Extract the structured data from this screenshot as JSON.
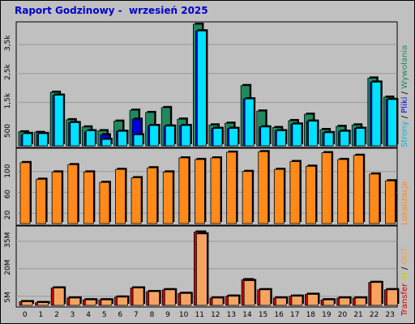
{
  "title": "Raport Godzinowy -  wrzesień 2025",
  "colors": {
    "background": "#c0c0c0",
    "title": "#0000cc",
    "wizyty": "#1e8a5e",
    "pliki": "#0000dd",
    "strony": "#00e0ff",
    "kilobajty": "#ff8a1a",
    "transfer": "#cc0000",
    "in": "#cccc00",
    "out": "#ff9933",
    "transfer_fill": "#f4a460"
  },
  "legend": {
    "strony": "Strony",
    "sep1": " / ",
    "pliki": "Pliki",
    "sep2": " / ",
    "wizyty": "Wywołania",
    "kilobajty": "Lokalizacje",
    "transfer": "Transfer",
    "in": " IN",
    "sep3": " / ",
    "out": "OUT"
  },
  "chart_data": [
    {
      "type": "bar",
      "categories": [
        "0",
        "1",
        "2",
        "3",
        "4",
        "5",
        "6",
        "7",
        "8",
        "9",
        "10",
        "11",
        "12",
        "13",
        "14",
        "15",
        "16",
        "17",
        "18",
        "19",
        "20",
        "21",
        "22",
        "23"
      ],
      "y_ticks": [
        "500",
        "1,5k",
        "2,5k",
        "3,5k"
      ],
      "ylim": [
        0,
        4200
      ],
      "series": [
        {
          "name": "Wywołania",
          "values": [
            480,
            460,
            1850,
            900,
            650,
            520,
            850,
            1230,
            1150,
            1320,
            920,
            4200,
            720,
            780,
            2080,
            1200,
            630,
            870,
            1090,
            560,
            670,
            720,
            2340,
            1680
          ]
        },
        {
          "name": "Pliki",
          "values": [
            380,
            400,
            1750,
            800,
            480,
            380,
            500,
            920,
            700,
            680,
            700,
            3970,
            600,
            600,
            1620,
            650,
            520,
            750,
            850,
            450,
            500,
            600,
            2200,
            1600
          ]
        },
        {
          "name": "Strony",
          "values": [
            420,
            420,
            1750,
            800,
            520,
            220,
            500,
            380,
            700,
            680,
            700,
            3970,
            600,
            600,
            1620,
            650,
            520,
            750,
            850,
            450,
            500,
            600,
            2200,
            1600
          ]
        }
      ]
    },
    {
      "type": "bar",
      "categories": [
        "0",
        "1",
        "2",
        "3",
        "4",
        "5",
        "6",
        "7",
        "8",
        "9",
        "10",
        "11",
        "12",
        "13",
        "14",
        "15",
        "16",
        "17",
        "18",
        "19",
        "20",
        "21",
        "22",
        "23"
      ],
      "y_ticks": [
        "20",
        "60",
        "100"
      ],
      "ylim": [
        0,
        140
      ],
      "series": [
        {
          "name": "Lokalizacje",
          "values": [
            117,
            85,
            99,
            113,
            99,
            79,
            104,
            88,
            107,
            99,
            126,
            123,
            126,
            137,
            100,
            138,
            104,
            119,
            110,
            136,
            123,
            131,
            95,
            82
          ]
        }
      ]
    },
    {
      "type": "bar",
      "categories": [
        "0",
        "1",
        "2",
        "3",
        "4",
        "5",
        "6",
        "7",
        "8",
        "9",
        "10",
        "11",
        "12",
        "13",
        "14",
        "15",
        "16",
        "17",
        "18",
        "19",
        "20",
        "21",
        "22",
        "23"
      ],
      "y_ticks": [
        "5M",
        "20M",
        "35M"
      ],
      "ylim": [
        0,
        42
      ],
      "series": [
        {
          "name": "Transfer",
          "values": [
            2,
            1.5,
            9.5,
            4,
            3,
            3,
            4.5,
            9.5,
            7.5,
            8.5,
            6.5,
            40,
            4,
            5,
            14,
            8.5,
            4,
            5,
            6,
            3,
            4,
            4,
            12.5,
            8.5
          ]
        },
        {
          "name": "OUT",
          "values": [
            2,
            1.5,
            9.5,
            4,
            3,
            3,
            4.5,
            9.5,
            7.5,
            8.5,
            6.5,
            39,
            4,
            5,
            13.5,
            8.5,
            4,
            5,
            6,
            3,
            4,
            4,
            12.5,
            8.5
          ]
        }
      ]
    }
  ]
}
